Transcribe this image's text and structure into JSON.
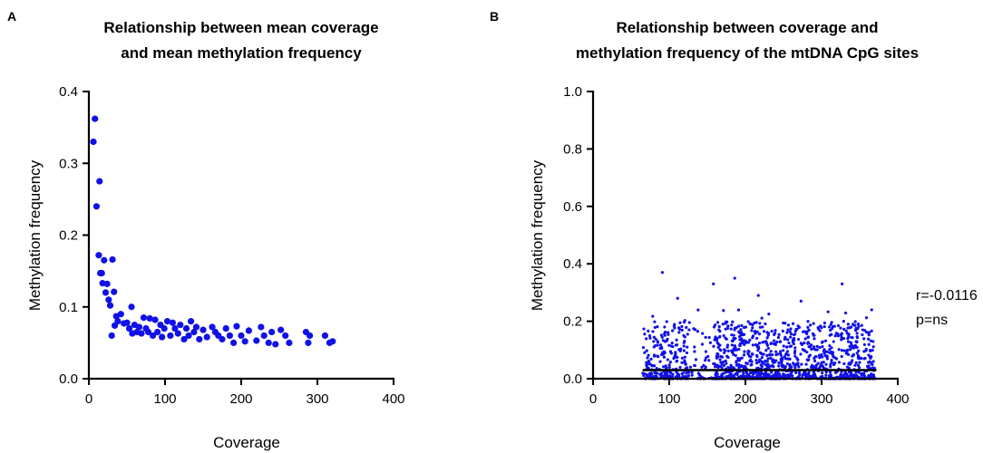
{
  "chart_data": [
    {
      "panel": "A",
      "type": "scatter",
      "title": [
        "Relationship between mean coverage",
        "and mean methylation frequency"
      ],
      "xlabel": "Coverage",
      "ylabel": "Methylation frequency",
      "xlim": [
        0,
        400
      ],
      "ylim": [
        0,
        0.4
      ],
      "xticks": [
        0,
        100,
        200,
        300,
        400
      ],
      "xtick_labels": [
        "0",
        "100",
        "200",
        "300",
        "400"
      ],
      "yticks": [
        0,
        0.1,
        0.2,
        0.3,
        0.4
      ],
      "ytick_labels": [
        "0.0",
        "0.1",
        "0.2",
        "0.3",
        "0.4"
      ],
      "color": "#1010e8",
      "points": [
        [
          6,
          0.33
        ],
        [
          8,
          0.362
        ],
        [
          10,
          0.24
        ],
        [
          14,
          0.275
        ],
        [
          13,
          0.172
        ],
        [
          15,
          0.147
        ],
        [
          17,
          0.147
        ],
        [
          20,
          0.165
        ],
        [
          18,
          0.133
        ],
        [
          22,
          0.12
        ],
        [
          24,
          0.132
        ],
        [
          26,
          0.11
        ],
        [
          28,
          0.102
        ],
        [
          31,
          0.166
        ],
        [
          33,
          0.121
        ],
        [
          30,
          0.06
        ],
        [
          36,
          0.087
        ],
        [
          38,
          0.08
        ],
        [
          42,
          0.09
        ],
        [
          34,
          0.074
        ],
        [
          46,
          0.077
        ],
        [
          50,
          0.078
        ],
        [
          53,
          0.07
        ],
        [
          56,
          0.1
        ],
        [
          57,
          0.063
        ],
        [
          60,
          0.075
        ],
        [
          63,
          0.065
        ],
        [
          66,
          0.072
        ],
        [
          69,
          0.063
        ],
        [
          72,
          0.085
        ],
        [
          75,
          0.07
        ],
        [
          78,
          0.065
        ],
        [
          80,
          0.084
        ],
        [
          84,
          0.06
        ],
        [
          87,
          0.082
        ],
        [
          90,
          0.065
        ],
        [
          94,
          0.075
        ],
        [
          96,
          0.058
        ],
        [
          99,
          0.07
        ],
        [
          103,
          0.08
        ],
        [
          107,
          0.06
        ],
        [
          110,
          0.078
        ],
        [
          113,
          0.07
        ],
        [
          117,
          0.063
        ],
        [
          120,
          0.075
        ],
        [
          125,
          0.055
        ],
        [
          128,
          0.07
        ],
        [
          131,
          0.06
        ],
        [
          134,
          0.08
        ],
        [
          138,
          0.065
        ],
        [
          141,
          0.072
        ],
        [
          145,
          0.055
        ],
        [
          150,
          0.068
        ],
        [
          155,
          0.058
        ],
        [
          162,
          0.072
        ],
        [
          166,
          0.065
        ],
        [
          170,
          0.06
        ],
        [
          175,
          0.055
        ],
        [
          180,
          0.07
        ],
        [
          185,
          0.06
        ],
        [
          190,
          0.05
        ],
        [
          194,
          0.073
        ],
        [
          200,
          0.06
        ],
        [
          205,
          0.052
        ],
        [
          210,
          0.067
        ],
        [
          220,
          0.053
        ],
        [
          226,
          0.072
        ],
        [
          230,
          0.06
        ],
        [
          236,
          0.05
        ],
        [
          240,
          0.065
        ],
        [
          245,
          0.048
        ],
        [
          252,
          0.068
        ],
        [
          258,
          0.06
        ],
        [
          263,
          0.05
        ],
        [
          285,
          0.065
        ],
        [
          288,
          0.05
        ],
        [
          290,
          0.06
        ],
        [
          310,
          0.06
        ],
        [
          316,
          0.05
        ],
        [
          320,
          0.052
        ]
      ]
    },
    {
      "panel": "B",
      "type": "scatter",
      "title": [
        "Relationship between coverage and",
        "methylation frequency of the mtDNA CpG sites"
      ],
      "xlabel": "Coverage",
      "ylabel": "Methylation frequency",
      "xlim": [
        0,
        400
      ],
      "ylim": [
        0,
        1.0
      ],
      "xticks": [
        0,
        100,
        200,
        300,
        400
      ],
      "xtick_labels": [
        "0",
        "100",
        "200",
        "300",
        "400"
      ],
      "yticks": [
        0,
        0.2,
        0.4,
        0.6,
        0.8,
        1.0
      ],
      "ytick_labels": [
        "0.0",
        "0.2",
        "0.4",
        "0.6",
        "0.8",
        "1.0"
      ],
      "color": "#1010e8",
      "notable_points": [
        [
          91,
          0.37
        ],
        [
          111,
          0.28
        ],
        [
          158,
          0.33
        ],
        [
          186,
          0.35
        ],
        [
          217,
          0.29
        ],
        [
          273,
          0.27
        ],
        [
          327,
          0.33
        ],
        [
          329,
          0.2
        ]
      ],
      "cloud": {
        "description": "dense cloud of CpG sites, mostly below 0.2",
        "x_range": [
          65,
          370
        ],
        "typical_max": 0.2,
        "approx_n": 1400
      },
      "regression_line": {
        "x": [
          65,
          372
        ],
        "y": [
          0.03,
          0.03
        ],
        "color": "#000000"
      },
      "annotations": [
        "r=-0.0116",
        "p=ns"
      ]
    }
  ]
}
